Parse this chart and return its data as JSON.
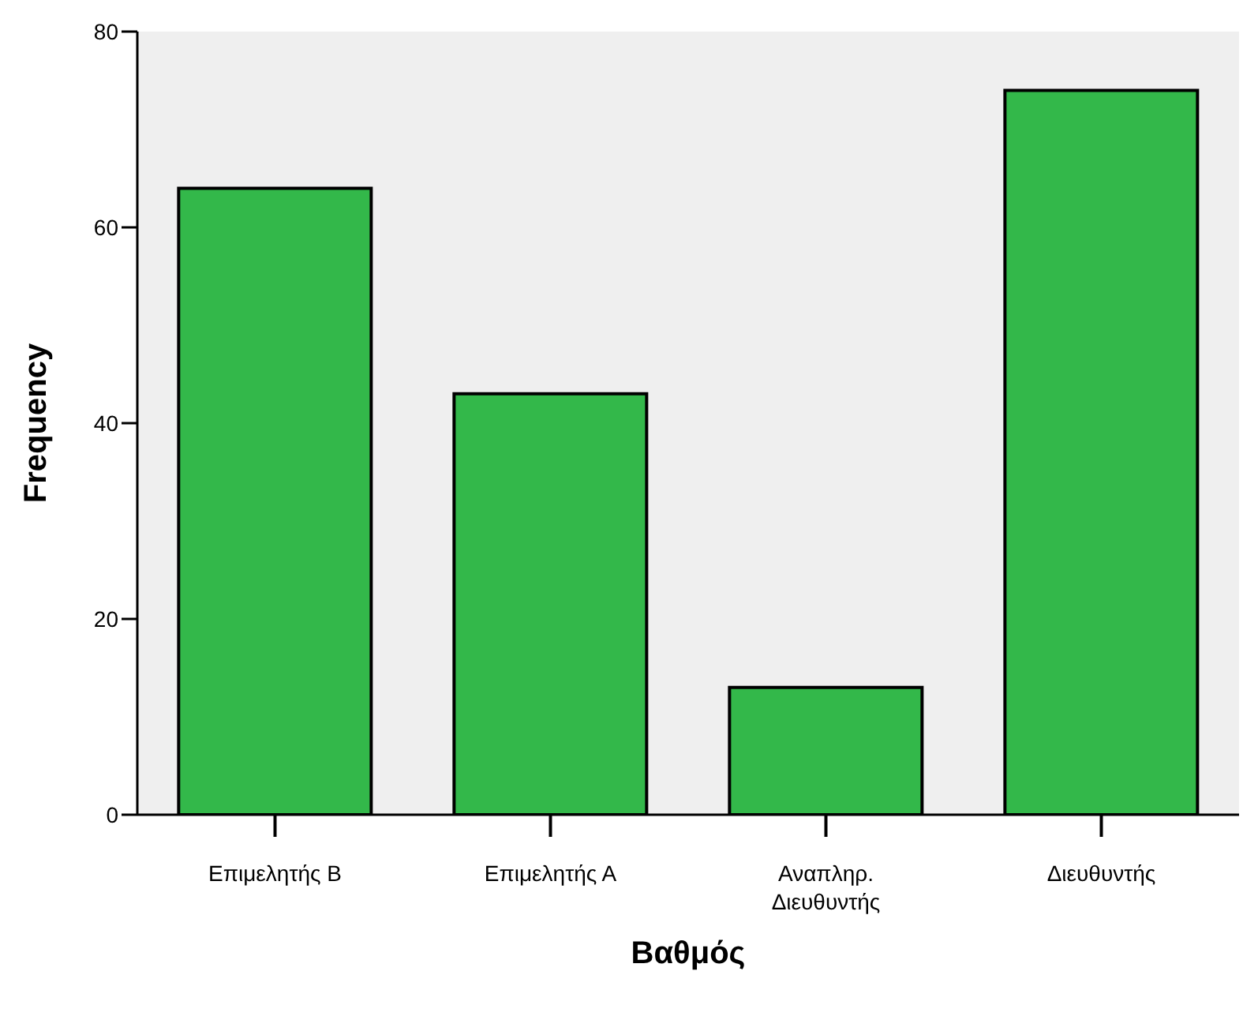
{
  "chart_data": {
    "type": "bar",
    "xlabel": "Βαθμός",
    "ylabel": "Frequency",
    "categories": [
      "Επιμελητής Β",
      "Επιμελητής Α",
      "Αναπληρ. Διευθυντής",
      "Διευθυντής"
    ],
    "values": [
      64,
      43,
      13,
      74
    ],
    "color": "#33b84a",
    "ylim": [
      0,
      80
    ],
    "yticks": [
      0,
      20,
      40,
      60,
      80
    ],
    "grid": false,
    "legend": false
  }
}
